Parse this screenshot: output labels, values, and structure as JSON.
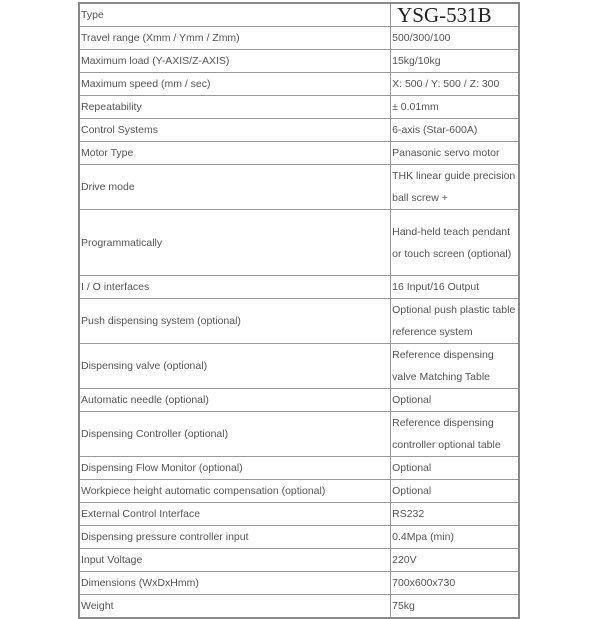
{
  "specs": [
    {
      "label": "Type",
      "value": "YSG-531B"
    },
    {
      "label": "Travel range (Xmm / Ymm / Zmm)",
      "value": "500/300/100"
    },
    {
      "label": "Maximum load (Y-AXIS/Z-AXIS)",
      "value": "15kg/10kg"
    },
    {
      "label": "Maximum speed (mm / sec)",
      "value": "X: 500 / Y: 500 / Z: 300"
    },
    {
      "label": "Repeatability",
      "value": "± 0.01mm"
    },
    {
      "label": "Control Systems",
      "value": "6-axis (Star-600A)"
    },
    {
      "label": "Motor Type",
      "value": "Panasonic servo motor"
    },
    {
      "label": "Drive mode",
      "value": "THK linear guide precision ball screw +"
    },
    {
      "label": "Programmatically",
      "value": "Hand-held teach pendant or touch screen (optional)"
    },
    {
      "label": "I / O interfaces",
      "value": "16 Input/16 Output"
    },
    {
      "label": "Push dispensing system (optional)",
      "value": "Optional push plastic table reference system"
    },
    {
      "label": "Dispensing valve (optional)",
      "value": "Reference dispensing valve Matching Table"
    },
    {
      "label": "Automatic needle (optional)",
      "value": "Optional"
    },
    {
      "label": "Dispensing Controller (optional)",
      "value": "Reference dispensing controller optional table"
    },
    {
      "label": "Dispensing Flow Monitor (optional)",
      "value": "Optional"
    },
    {
      "label": "Workpiece height automatic compensation (optional)",
      "value": "Optional"
    },
    {
      "label": "External Control Interface",
      "value": "RS232"
    },
    {
      "label": "Dispensing pressure controller input",
      "value": "0.4Mpa (min)"
    },
    {
      "label": "Input Voltage",
      "value": "220V"
    },
    {
      "label": "Dimensions (WxDxHmm)",
      "value": "700x600x730"
    },
    {
      "label": "Weight",
      "value": "75kg"
    }
  ]
}
